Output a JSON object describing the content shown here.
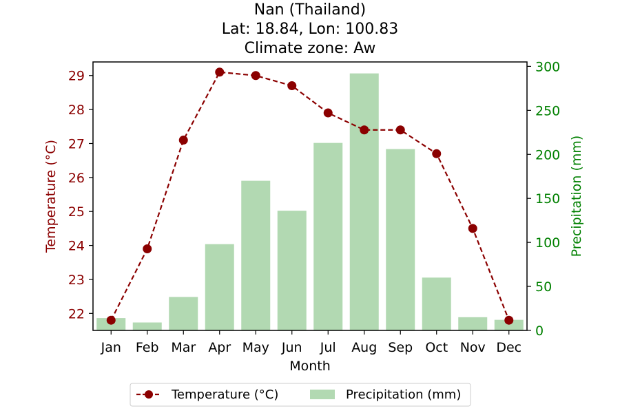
{
  "chart_data": {
    "type": "bar+line",
    "title_lines": [
      "Nan (Thailand)",
      "Lat: 18.84, Lon: 100.83",
      "Climate zone: Aw"
    ],
    "xlabel": "Month",
    "ylabel_left": "Temperature (°C)",
    "ylabel_right": "Precipitation (mm)",
    "categories": [
      "Jan",
      "Feb",
      "Mar",
      "Apr",
      "May",
      "Jun",
      "Jul",
      "Aug",
      "Sep",
      "Oct",
      "Nov",
      "Dec"
    ],
    "series": [
      {
        "name": "Temperature (°C)",
        "kind": "line",
        "axis": "left",
        "color": "#8b0000",
        "values": [
          21.8,
          23.9,
          27.1,
          29.1,
          29.0,
          28.7,
          27.9,
          27.4,
          27.4,
          26.7,
          24.5,
          21.8
        ]
      },
      {
        "name": "Precipitation (mm)",
        "kind": "bar",
        "axis": "right",
        "color": "#b2d9b2",
        "values": [
          14,
          9,
          38,
          98,
          170,
          136,
          213,
          292,
          206,
          60,
          15,
          12
        ]
      }
    ],
    "ylim_left": [
      21.5,
      29.4
    ],
    "yticks_left": [
      22,
      23,
      24,
      25,
      26,
      27,
      28,
      29
    ],
    "ylim_right": [
      0,
      305
    ],
    "yticks_right": [
      0,
      50,
      100,
      150,
      200,
      250,
      300
    ],
    "left_axis_color": "#8b0000",
    "right_axis_color": "#008000",
    "grid": false,
    "legend_position": "bottom-center"
  }
}
